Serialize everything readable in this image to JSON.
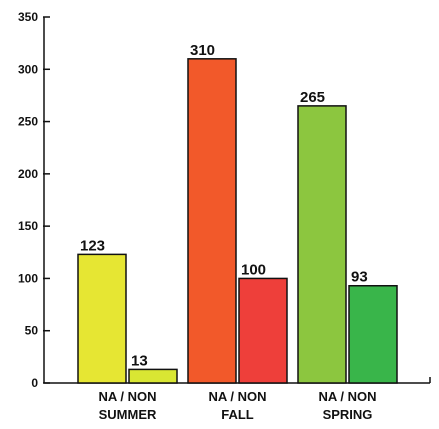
{
  "chart_data": {
    "type": "bar",
    "title": "",
    "xlabel": "",
    "ylabel": "",
    "ylim": [
      0,
      350
    ],
    "yticks": [
      0,
      50,
      100,
      150,
      200,
      250,
      300,
      350
    ],
    "grid": false,
    "legend": "none",
    "groups": [
      {
        "category": "SUMMER",
        "bars": [
          {
            "label": "NA",
            "value": 123,
            "color": "#e6e633"
          },
          {
            "label": "NON",
            "value": 13,
            "color": "#d9e633"
          }
        ]
      },
      {
        "category": "FALL",
        "bars": [
          {
            "label": "NA",
            "value": 310,
            "color": "#f2592a"
          },
          {
            "label": "NON",
            "value": 100,
            "color": "#ee3f3a"
          }
        ]
      },
      {
        "category": "SPRING",
        "bars": [
          {
            "label": "NA",
            "value": 265,
            "color": "#8cc63f"
          },
          {
            "label": "NON",
            "value": 93,
            "color": "#39b54a"
          }
        ]
      }
    ]
  }
}
